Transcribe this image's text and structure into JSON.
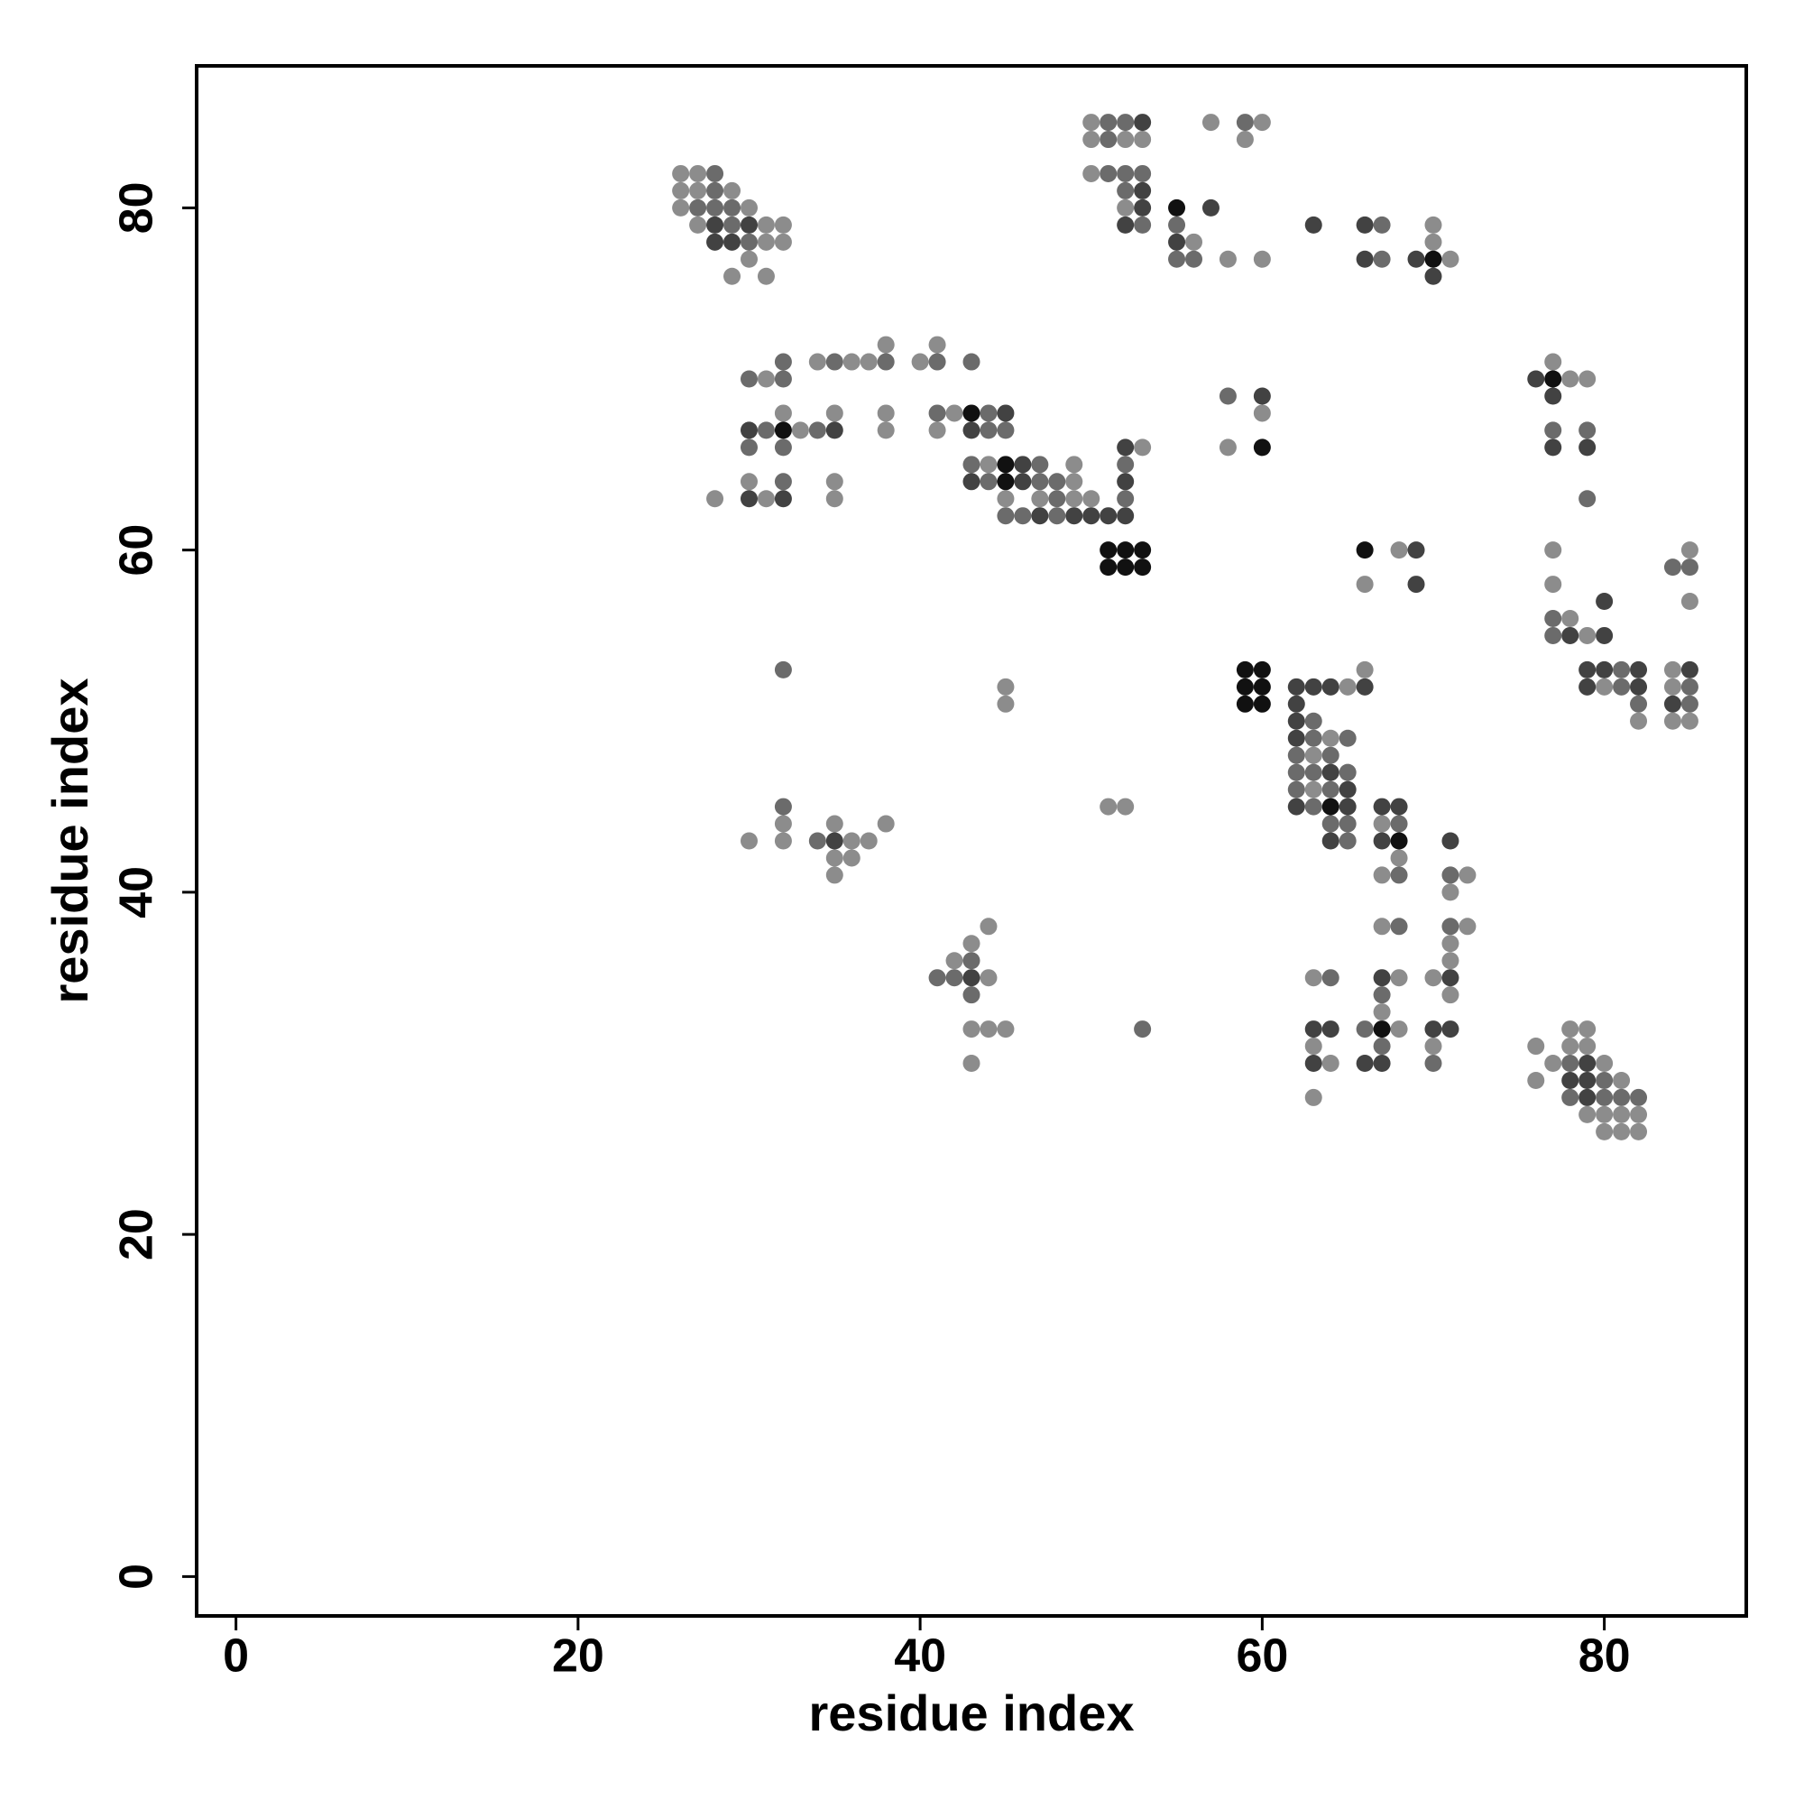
{
  "chart_data": {
    "type": "scatter",
    "xlabel": "residue index",
    "ylabel": "residue index",
    "xlim": [
      -2.3,
      88.3
    ],
    "ylim": [
      -2.3,
      88.3
    ],
    "xticks": [
      0,
      20,
      40,
      60,
      80
    ],
    "yticks": [
      0,
      20,
      40,
      60,
      80
    ],
    "series": [
      {
        "color": "#8c8c8c",
        "x": [
          26,
          27,
          26,
          27,
          29,
          26,
          30,
          27,
          31,
          32,
          31,
          32,
          30,
          29,
          31,
          50,
          50,
          52,
          53,
          50,
          52,
          57,
          60,
          59,
          56,
          58,
          60,
          70,
          70,
          71,
          38,
          41,
          34,
          36,
          37,
          40,
          31,
          32,
          35,
          38,
          42,
          33,
          38,
          41,
          53,
          44,
          49,
          30,
          35,
          49,
          28,
          31,
          35,
          45,
          47,
          49,
          50,
          60,
          58,
          77,
          78,
          79,
          68,
          77,
          85,
          66,
          77,
          85,
          78,
          79,
          66,
          84,
          45,
          65,
          80,
          84,
          45,
          82,
          84,
          85,
          64,
          63,
          63,
          51,
          52,
          67,
          30,
          32,
          36,
          37,
          32,
          35,
          38,
          35,
          36,
          68,
          35,
          67,
          72,
          71,
          44,
          67,
          72,
          43,
          71,
          42,
          71,
          44,
          63,
          68,
          70,
          71,
          67,
          43,
          44,
          45,
          68,
          78,
          79,
          63,
          70,
          76,
          78,
          79,
          43,
          64,
          77,
          80,
          76,
          81,
          63,
          79,
          80,
          81,
          82,
          80,
          81,
          82
        ],
        "values": [
          82,
          82,
          81,
          81,
          81,
          80,
          80,
          79,
          79,
          79,
          78,
          78,
          77,
          76,
          76,
          85,
          84,
          84,
          84,
          82,
          80,
          85,
          85,
          84,
          78,
          77,
          77,
          79,
          78,
          77,
          72,
          72,
          71,
          71,
          71,
          71,
          70,
          68,
          68,
          68,
          68,
          67,
          67,
          67,
          66,
          65,
          65,
          64,
          64,
          64,
          63,
          63,
          63,
          63,
          63,
          63,
          63,
          68,
          66,
          71,
          70,
          70,
          60,
          60,
          60,
          58,
          58,
          57,
          56,
          55,
          53,
          53,
          52,
          52,
          52,
          52,
          51,
          50,
          50,
          50,
          49,
          48,
          46,
          45,
          45,
          44,
          43,
          43,
          43,
          43,
          44,
          44,
          44,
          42,
          42,
          42,
          41,
          41,
          41,
          40,
          38,
          38,
          38,
          37,
          37,
          36,
          36,
          35,
          35,
          35,
          35,
          34,
          33,
          32,
          32,
          32,
          32,
          32,
          32,
          31,
          31,
          31,
          31,
          31,
          30,
          30,
          30,
          30,
          29,
          29,
          28,
          27,
          27,
          27,
          27,
          26,
          26,
          26
        ]
      },
      {
        "color": "#6b6b6b",
        "x": [
          28,
          28,
          27,
          28,
          29,
          29,
          30,
          51,
          52,
          51,
          51,
          52,
          53,
          52,
          53,
          59,
          55,
          55,
          56,
          67,
          67,
          32,
          35,
          38,
          41,
          43,
          30,
          32,
          41,
          44,
          31,
          34,
          44,
          45,
          30,
          32,
          43,
          47,
          52,
          32,
          44,
          47,
          48,
          48,
          52,
          45,
          46,
          48,
          58,
          77,
          79,
          79,
          84,
          85,
          77,
          77,
          32,
          81,
          81,
          85,
          82,
          85,
          63,
          63,
          65,
          62,
          64,
          62,
          63,
          65,
          62,
          64,
          63,
          64,
          65,
          68,
          32,
          34,
          65,
          68,
          71,
          68,
          71,
          43,
          41,
          42,
          64,
          43,
          67,
          53,
          66,
          67,
          70,
          78,
          80,
          78,
          80,
          81,
          82
        ],
        "values": [
          82,
          81,
          80,
          80,
          80,
          79,
          78,
          85,
          85,
          84,
          82,
          82,
          82,
          81,
          79,
          85,
          79,
          77,
          77,
          79,
          77,
          71,
          71,
          71,
          71,
          71,
          70,
          70,
          68,
          68,
          67,
          67,
          67,
          67,
          66,
          66,
          65,
          65,
          65,
          64,
          64,
          64,
          64,
          63,
          63,
          62,
          62,
          62,
          69,
          67,
          67,
          63,
          59,
          59,
          56,
          55,
          53,
          53,
          52,
          52,
          51,
          51,
          50,
          49,
          49,
          48,
          48,
          47,
          47,
          47,
          46,
          46,
          45,
          44,
          44,
          44,
          45,
          43,
          43,
          41,
          41,
          38,
          38,
          36,
          35,
          35,
          35,
          34,
          34,
          32,
          32,
          31,
          30,
          30,
          29,
          28,
          28,
          28,
          28
        ]
      },
      {
        "color": "#424242",
        "x": [
          28,
          30,
          28,
          29,
          53,
          52,
          53,
          53,
          57,
          55,
          63,
          66,
          66,
          69,
          70,
          45,
          30,
          35,
          43,
          52,
          46,
          43,
          46,
          52,
          30,
          32,
          47,
          49,
          50,
          51,
          52,
          60,
          76,
          77,
          77,
          79,
          69,
          69,
          80,
          78,
          80,
          79,
          80,
          82,
          85,
          62,
          63,
          64,
          66,
          79,
          82,
          62,
          84,
          62,
          62,
          64,
          65,
          62,
          65,
          67,
          68,
          35,
          64,
          67,
          71,
          43,
          67,
          71,
          63,
          64,
          70,
          71,
          63,
          66,
          67,
          79,
          78,
          79,
          79
        ],
        "values": [
          79,
          79,
          78,
          78,
          85,
          79,
          81,
          80,
          80,
          78,
          79,
          79,
          77,
          77,
          76,
          68,
          67,
          67,
          67,
          66,
          65,
          64,
          64,
          64,
          63,
          63,
          62,
          62,
          62,
          62,
          62,
          69,
          70,
          69,
          66,
          66,
          60,
          58,
          57,
          55,
          55,
          53,
          53,
          53,
          53,
          52,
          52,
          52,
          52,
          52,
          52,
          51,
          51,
          50,
          49,
          47,
          46,
          45,
          45,
          45,
          45,
          43,
          43,
          43,
          43,
          35,
          35,
          35,
          32,
          32,
          32,
          32,
          30,
          30,
          30,
          30,
          29,
          29,
          28
        ]
      },
      {
        "color": "#111111",
        "x": [
          55,
          70,
          43,
          32,
          45,
          45,
          51,
          52,
          53,
          51,
          52,
          53,
          60,
          77,
          66,
          59,
          60,
          59,
          60,
          59,
          60,
          64,
          68,
          67
        ],
        "values": [
          80,
          77,
          68,
          67,
          65,
          64,
          60,
          60,
          60,
          59,
          59,
          59,
          66,
          70,
          60,
          53,
          53,
          52,
          52,
          51,
          51,
          45,
          43,
          32
        ]
      }
    ]
  }
}
